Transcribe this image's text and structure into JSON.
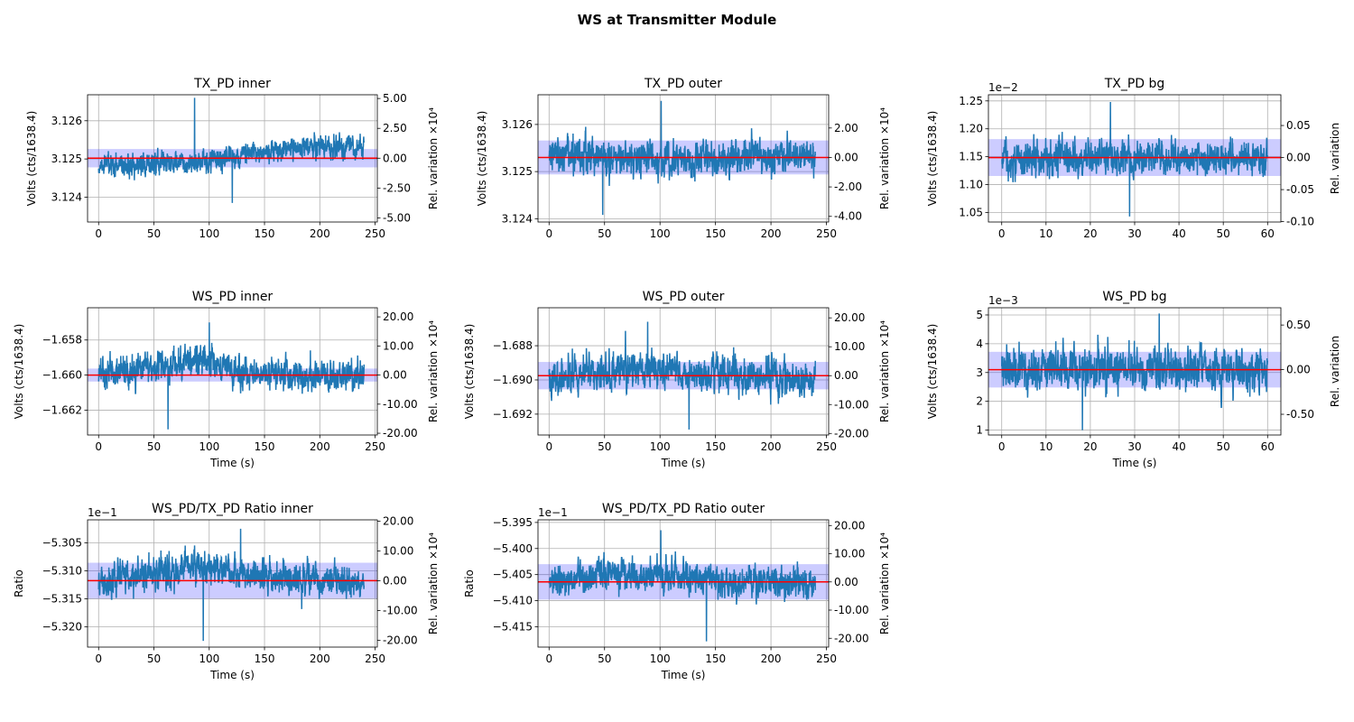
{
  "figure": {
    "title": "WS at Transmitter Module"
  },
  "colors": {
    "line": "#1f77b4",
    "mean_line": "#ff0000",
    "band": "#0000ff",
    "grid": "#b0b0b0",
    "axes": "#000000"
  },
  "chart_data": [
    {
      "id": "tx_inner",
      "type": "line",
      "title": "TX_PD inner",
      "xlabel": "",
      "ylabel": "Volts (cts/1638.4)",
      "y2label": "Rel. variation ×10⁴",
      "xlim": [
        -10,
        252
      ],
      "ylim": [
        3.12335,
        3.12668
      ],
      "xticks": [
        0,
        50,
        100,
        150,
        200,
        250
      ],
      "yticks": [
        3.124,
        3.125,
        3.126
      ],
      "ytick_labels": [
        "3.124",
        "3.125",
        "3.126"
      ],
      "y_offset_label": "",
      "mean": 3.12502,
      "band": [
        3.12478,
        3.12526
      ],
      "right_axis": {
        "ticks": [
          5,
          2.5,
          0,
          -2.5,
          -5
        ],
        "labels": [
          "5.00",
          "2.50",
          "0.00",
          "-2.50",
          "-5.00"
        ],
        "scale": 10000,
        "sign": 1
      },
      "series": {
        "x_end": 240,
        "trend": [
          [
            0,
            3.12482
          ],
          [
            100,
            3.12492
          ],
          [
            130,
            3.1251
          ],
          [
            180,
            3.1253
          ],
          [
            240,
            3.12535
          ]
        ],
        "noise": 0.00022,
        "peaks": [
          3.12385,
          3.1266
        ]
      }
    },
    {
      "id": "tx_outer",
      "type": "line",
      "title": "TX_PD outer",
      "xlabel": "",
      "ylabel": "Volts (cts/1638.4)",
      "y2label": "Rel. variation ×10⁴",
      "xlim": [
        -10,
        252
      ],
      "ylim": [
        3.12393,
        3.12663
      ],
      "xticks": [
        0,
        50,
        100,
        150,
        200,
        250
      ],
      "yticks": [
        3.124,
        3.125,
        3.126
      ],
      "ytick_labels": [
        "3.124",
        "3.125",
        "3.126"
      ],
      "y_offset_label": "",
      "mean": 3.1253,
      "band": [
        3.12494,
        3.12566
      ],
      "right_axis": {
        "ticks": [
          2,
          0,
          -2,
          -4
        ],
        "labels": [
          "2.00",
          "0.00",
          "-2.00",
          "-4.00"
        ],
        "scale": 10000,
        "sign": 1
      },
      "series": {
        "x_end": 240,
        "trend": [
          [
            0,
            3.12535
          ],
          [
            120,
            3.12525
          ],
          [
            240,
            3.12532
          ]
        ],
        "noise": 0.00026,
        "peaks": [
          3.12408,
          3.1265
        ]
      }
    },
    {
      "id": "tx_bg",
      "type": "line",
      "title": "TX_PD bg",
      "xlabel": "",
      "ylabel": "Volts (cts/1638.4)",
      "y2label": "Rel. variation",
      "xlim": [
        -3,
        63
      ],
      "ylim": [
        0.01033,
        0.01261
      ],
      "xticks": [
        0,
        10,
        20,
        30,
        40,
        50,
        60
      ],
      "yticks": [
        0.0105,
        0.011,
        0.0115,
        0.012,
        0.0125
      ],
      "ytick_labels": [
        "1.05",
        "1.10",
        "1.15",
        "1.20",
        "1.25"
      ],
      "y_offset_label": "1e−2",
      "mean": 0.011485,
      "band": [
        0.011155,
        0.011815
      ],
      "right_axis": {
        "ticks": [
          0.05,
          0,
          -0.05,
          -0.1
        ],
        "labels": [
          "0.05",
          "0.00",
          "-0.05",
          "-0.10"
        ],
        "scale": 1,
        "sign": 1
      },
      "series": {
        "x_end": 60,
        "trend": [
          [
            0,
            0.01148
          ],
          [
            60,
            0.01148
          ]
        ],
        "noise": 0.00023,
        "peaks": [
          0.01043,
          0.01248
        ]
      }
    },
    {
      "id": "ws_inner",
      "type": "line",
      "title": "WS_PD inner",
      "xlabel": "Time (s)",
      "ylabel": "Volts (cts/1638.4)",
      "y2label": "Rel. variation ×10⁴",
      "xlim": [
        -10,
        252
      ],
      "ylim": [
        -1.66342,
        -1.65616
      ],
      "xticks": [
        0,
        50,
        100,
        150,
        200,
        250
      ],
      "yticks": [
        -1.662,
        -1.66,
        -1.658
      ],
      "ytick_labels": [
        "−1.662",
        "−1.660",
        "−1.658"
      ],
      "y_offset_label": "",
      "mean": -1.66,
      "band": [
        -1.66037,
        -1.65963
      ],
      "right_axis": {
        "ticks": [
          -20,
          -10,
          0,
          10,
          20
        ],
        "labels": [
          "-20.00",
          "-10.00",
          "0.00",
          "10.00",
          "20.00"
        ],
        "scale": 10000,
        "sign": -1
      },
      "series": {
        "x_end": 240,
        "trend": [
          [
            0,
            -1.66
          ],
          [
            95,
            -1.6591
          ],
          [
            130,
            -1.6599
          ],
          [
            240,
            -1.66
          ]
        ],
        "noise": 0.00065,
        "peaks": [
          -1.6631,
          -1.657
        ]
      }
    },
    {
      "id": "ws_outer",
      "type": "line",
      "title": "WS_PD outer",
      "xlabel": "Time (s)",
      "ylabel": "Volts (cts/1638.4)",
      "y2label": "Rel. variation ×10⁴",
      "xlim": [
        -10,
        252
      ],
      "ylim": [
        -1.69322,
        -1.68578
      ],
      "xticks": [
        0,
        50,
        100,
        150,
        200,
        250
      ],
      "yticks": [
        -1.692,
        -1.69,
        -1.688
      ],
      "ytick_labels": [
        "−1.692",
        "−1.690",
        "−1.688"
      ],
      "y_offset_label": "",
      "mean": -1.68975,
      "band": [
        -1.69055,
        -1.68895
      ],
      "right_axis": {
        "ticks": [
          -20,
          -10,
          0,
          10,
          20
        ],
        "labels": [
          "-20.00",
          "-10.00",
          "0.00",
          "10.00",
          "20.00"
        ],
        "scale": 10000,
        "sign": -1
      },
      "series": {
        "x_end": 240,
        "trend": [
          [
            0,
            -1.6899
          ],
          [
            75,
            -1.6893
          ],
          [
            140,
            -1.6896
          ],
          [
            240,
            -1.69
          ]
        ],
        "noise": 0.00075,
        "peaks": [
          -1.6929,
          -1.6866
        ]
      }
    },
    {
      "id": "ws_bg",
      "type": "line",
      "title": "WS_PD bg",
      "xlabel": "Time (s)",
      "ylabel": "Volts (cts/1638.4)",
      "y2label": "Rel. variation",
      "xlim": [
        -3,
        63
      ],
      "ylim": [
        0.00083,
        0.00525
      ],
      "xticks": [
        0,
        10,
        20,
        30,
        40,
        50,
        60
      ],
      "yticks": [
        0.001,
        0.002,
        0.003,
        0.004,
        0.005
      ],
      "ytick_labels": [
        "1",
        "2",
        "3",
        "4",
        "5"
      ],
      "y_offset_label": "1e−3",
      "mean": 0.0031,
      "band": [
        0.00248,
        0.00372
      ],
      "right_axis": {
        "ticks": [
          0.5,
          0,
          -0.5
        ],
        "labels": [
          "0.50",
          "0.00",
          "-0.50"
        ],
        "scale": 1,
        "sign": 1
      },
      "series": {
        "x_end": 60,
        "trend": [
          [
            0,
            0.0031
          ],
          [
            60,
            0.0031
          ]
        ],
        "noise": 0.00055,
        "peaks": [
          0.001,
          0.00505
        ]
      }
    },
    {
      "id": "ratio_inner",
      "type": "line",
      "title": "WS_PD/TX_PD Ratio inner",
      "xlabel": "Time (s)",
      "ylabel": "Ratio",
      "y2label": "Rel. variation ×10⁴",
      "xlim": [
        -10,
        252
      ],
      "ylim": [
        -0.53236,
        -0.53009
      ],
      "xticks": [
        0,
        50,
        100,
        150,
        200,
        250
      ],
      "yticks": [
        -0.532,
        -0.5315,
        -0.531,
        -0.5305
      ],
      "ytick_labels": [
        "−5.320",
        "−5.315",
        "−5.310",
        "−5.305"
      ],
      "y_offset_label": "1e−1",
      "mean": -0.531175,
      "band": [
        -0.531495,
        -0.530855
      ],
      "right_axis": {
        "ticks": [
          -20,
          -10,
          0,
          10,
          20
        ],
        "labels": [
          "-20.00",
          "-10.00",
          "0.00",
          "10.00",
          "20.00"
        ],
        "scale": 10000,
        "sign": -1
      },
      "series": {
        "x_end": 240,
        "trend": [
          [
            0,
            -0.5312
          ],
          [
            95,
            -0.53087
          ],
          [
            140,
            -0.53112
          ],
          [
            240,
            -0.5312
          ]
        ],
        "noise": 0.00021,
        "peaks": [
          -0.53225,
          -0.53025
        ]
      }
    },
    {
      "id": "ratio_outer",
      "type": "line",
      "title": "WS_PD/TX_PD Ratio outer",
      "xlabel": "Time (s)",
      "ylabel": "Ratio",
      "y2label": "Rel. variation ×10⁴",
      "xlim": [
        -10,
        252
      ],
      "ylim": [
        -0.54189,
        -0.53945
      ],
      "xticks": [
        0,
        50,
        100,
        150,
        200,
        250
      ],
      "yticks": [
        -0.5415,
        -0.541,
        -0.5405,
        -0.54,
        -0.5395
      ],
      "ytick_labels": [
        "−5.415",
        "−5.410",
        "−5.405",
        "−5.400",
        "−5.395"
      ],
      "y_offset_label": "1e−1",
      "mean": -0.54064,
      "band": [
        -0.54098,
        -0.5403
      ],
      "right_axis": {
        "ticks": [
          -20,
          -10,
          0,
          10,
          20
        ],
        "labels": [
          "-20.00",
          "-10.00",
          "0.00",
          "10.00",
          "20.00"
        ],
        "scale": 10000,
        "sign": -1
      },
      "series": {
        "x_end": 240,
        "trend": [
          [
            0,
            -0.54065
          ],
          [
            60,
            -0.54045
          ],
          [
            140,
            -0.5406
          ],
          [
            240,
            -0.54068
          ]
        ],
        "noise": 0.00022,
        "peaks": [
          -0.54178,
          -0.53965
        ]
      }
    }
  ]
}
